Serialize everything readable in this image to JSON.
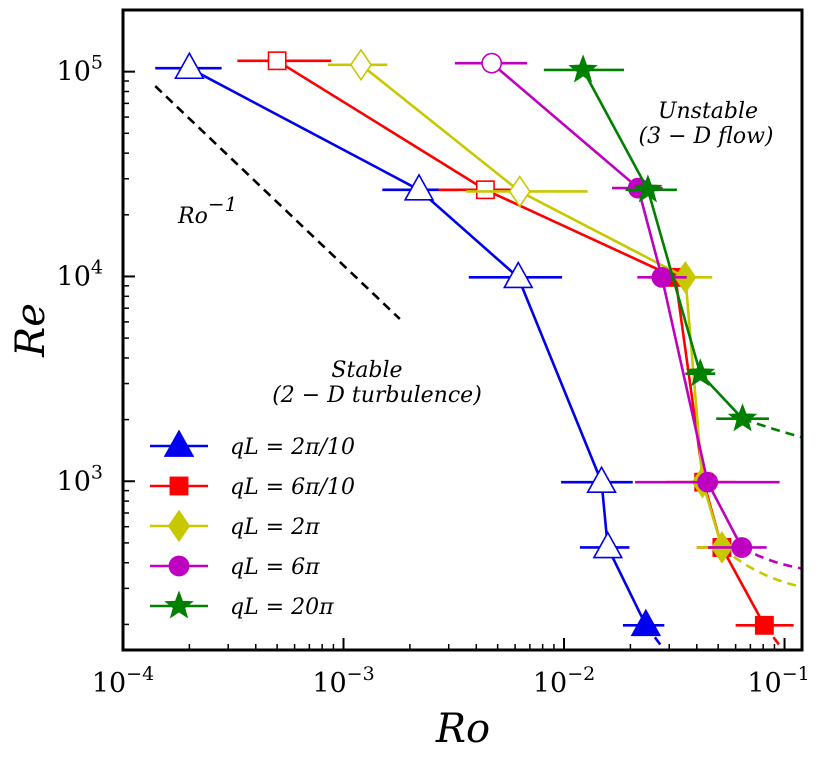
{
  "chart_data": {
    "type": "line",
    "xscale": "log",
    "yscale": "log",
    "xlabel": "Ro",
    "ylabel": "Re",
    "xlim": [
      0.0001,
      0.12
    ],
    "ylim": [
      150,
      200000
    ],
    "grid": false,
    "legend_position": "lower-left",
    "x_tick_labels": [
      {
        "value": 0.0001,
        "base": "10",
        "exp": "−4"
      },
      {
        "value": 0.001,
        "base": "10",
        "exp": "−3"
      },
      {
        "value": 0.01,
        "base": "10",
        "exp": "−2"
      },
      {
        "value": 0.1,
        "base": "10",
        "exp": "−1"
      }
    ],
    "y_tick_labels": [
      {
        "value": 1000,
        "base": "10",
        "exp": "3"
      },
      {
        "value": 10000,
        "base": "10",
        "exp": "4"
      },
      {
        "value": 100000,
        "base": "10",
        "exp": "5"
      }
    ],
    "annotations": {
      "ro_inverse": {
        "base": "Ro",
        "exp": "−1"
      },
      "unstable_line1": "Unstable",
      "unstable_line2": "(3 − D flow)",
      "stable_line1": "Stable",
      "stable_line2": "(2 − D turbulence)"
    },
    "reference_line": {
      "label": "Ro^-1",
      "x": [
        0.00014,
        0.0018
      ],
      "y": [
        85000,
        6200
      ]
    },
    "series": [
      {
        "name": "qL = 2π/10",
        "color": "#0000ee",
        "marker": "triangle",
        "points": [
          {
            "x": 0.0002,
            "y": 104000,
            "xerr": [
              0.00014,
              0.00028
            ],
            "filled": false
          },
          {
            "x": 0.0022,
            "y": 26500,
            "xerr": [
              0.0015,
              0.0033
            ],
            "filled": false
          },
          {
            "x": 0.0062,
            "y": 9900,
            "xerr": [
              0.0037,
              0.0098
            ],
            "filled": false
          },
          {
            "x": 0.0148,
            "y": 990,
            "xerr": [
              0.0097,
              0.0205
            ],
            "filled": false
          },
          {
            "x": 0.0158,
            "y": 475,
            "xerr": [
              0.0118,
              0.0198
            ],
            "filled": false
          },
          {
            "x": 0.0235,
            "y": 198,
            "xerr": [
              0.0185,
              0.0285
            ],
            "filled": true
          }
        ],
        "tail": [
          {
            "x": 0.0235,
            "y": 198
          },
          {
            "x": 0.0275,
            "y": 158
          }
        ]
      },
      {
        "name": "qL = 6π/10",
        "color": "#ff0000",
        "marker": "square",
        "points": [
          {
            "x": 0.0005,
            "y": 113000,
            "xerr": [
              0.00033,
              0.00088
            ],
            "filled": false
          },
          {
            "x": 0.0044,
            "y": 26500,
            "xerr": [
              0.0027,
              0.0067
            ],
            "filled": false
          },
          {
            "x": 0.032,
            "y": 9900,
            "xerr": [
              0.024,
              0.04
            ],
            "filled": true
          },
          {
            "x": 0.043,
            "y": 990,
            "xerr": [
              0.029,
              0.06
            ],
            "filled": true
          },
          {
            "x": 0.052,
            "y": 475,
            "xerr": [
              0.04,
              0.066
            ],
            "filled": true
          },
          {
            "x": 0.081,
            "y": 198,
            "xerr": [
              0.06,
              0.11
            ],
            "filled": true
          }
        ],
        "tail": [
          {
            "x": 0.081,
            "y": 198
          },
          {
            "x": 0.095,
            "y": 158
          }
        ]
      },
      {
        "name": "qL = 2π",
        "color": "#c8c800",
        "marker": "diamond",
        "points": [
          {
            "x": 0.0012,
            "y": 108000,
            "xerr": [
              0.00085,
              0.00158
            ],
            "filled": false
          },
          {
            "x": 0.0063,
            "y": 26000,
            "xerr": [
              0.0036,
              0.0128
            ],
            "filled": false
          },
          {
            "x": 0.0355,
            "y": 9900,
            "xerr": [
              0.025,
              0.047
            ],
            "filled": true
          },
          {
            "x": 0.0425,
            "y": 990,
            "xerr": [
              0.035,
              0.05
            ],
            "filled": true
          },
          {
            "x": 0.052,
            "y": 475,
            "xerr": [
              0.04,
              0.066
            ],
            "filled": true
          }
        ],
        "tail": [
          {
            "x": 0.052,
            "y": 475
          },
          {
            "x": 0.075,
            "y": 340
          },
          {
            "x": 0.12,
            "y": 305
          }
        ]
      },
      {
        "name": "qL = 6π",
        "color": "#c000c0",
        "marker": "circle",
        "points": [
          {
            "x": 0.0047,
            "y": 110000,
            "xerr": [
              0.0032,
              0.0068
            ],
            "filled": false
          },
          {
            "x": 0.0217,
            "y": 27000,
            "xerr": [
              0.0165,
              0.028
            ],
            "filled": true
          },
          {
            "x": 0.0278,
            "y": 9900,
            "xerr": [
              0.0215,
              0.036
            ],
            "filled": true
          },
          {
            "x": 0.0448,
            "y": 990,
            "xerr": [
              0.021,
              0.095
            ],
            "filled": true
          },
          {
            "x": 0.064,
            "y": 475,
            "xerr": [
              0.045,
              0.083
            ],
            "filled": true
          }
        ],
        "tail": [
          {
            "x": 0.064,
            "y": 475
          },
          {
            "x": 0.085,
            "y": 400
          },
          {
            "x": 0.12,
            "y": 375
          }
        ]
      },
      {
        "name": "qL = 20π",
        "color": "#008000",
        "marker": "star",
        "points": [
          {
            "x": 0.0122,
            "y": 102000,
            "xerr": [
              0.0081,
              0.0187
            ],
            "filled": true
          },
          {
            "x": 0.024,
            "y": 26500,
            "xerr": [
              0.019,
              0.0325
            ],
            "filled": true
          },
          {
            "x": 0.0415,
            "y": 3350,
            "xerr": [
              0.0355,
              0.0485
            ],
            "filled": true
          },
          {
            "x": 0.0645,
            "y": 2020,
            "xerr": [
              0.049,
              0.085
            ],
            "filled": true
          }
        ],
        "tail": [
          {
            "x": 0.0645,
            "y": 2020
          },
          {
            "x": 0.095,
            "y": 1750
          },
          {
            "x": 0.12,
            "y": 1640
          }
        ]
      }
    ]
  }
}
